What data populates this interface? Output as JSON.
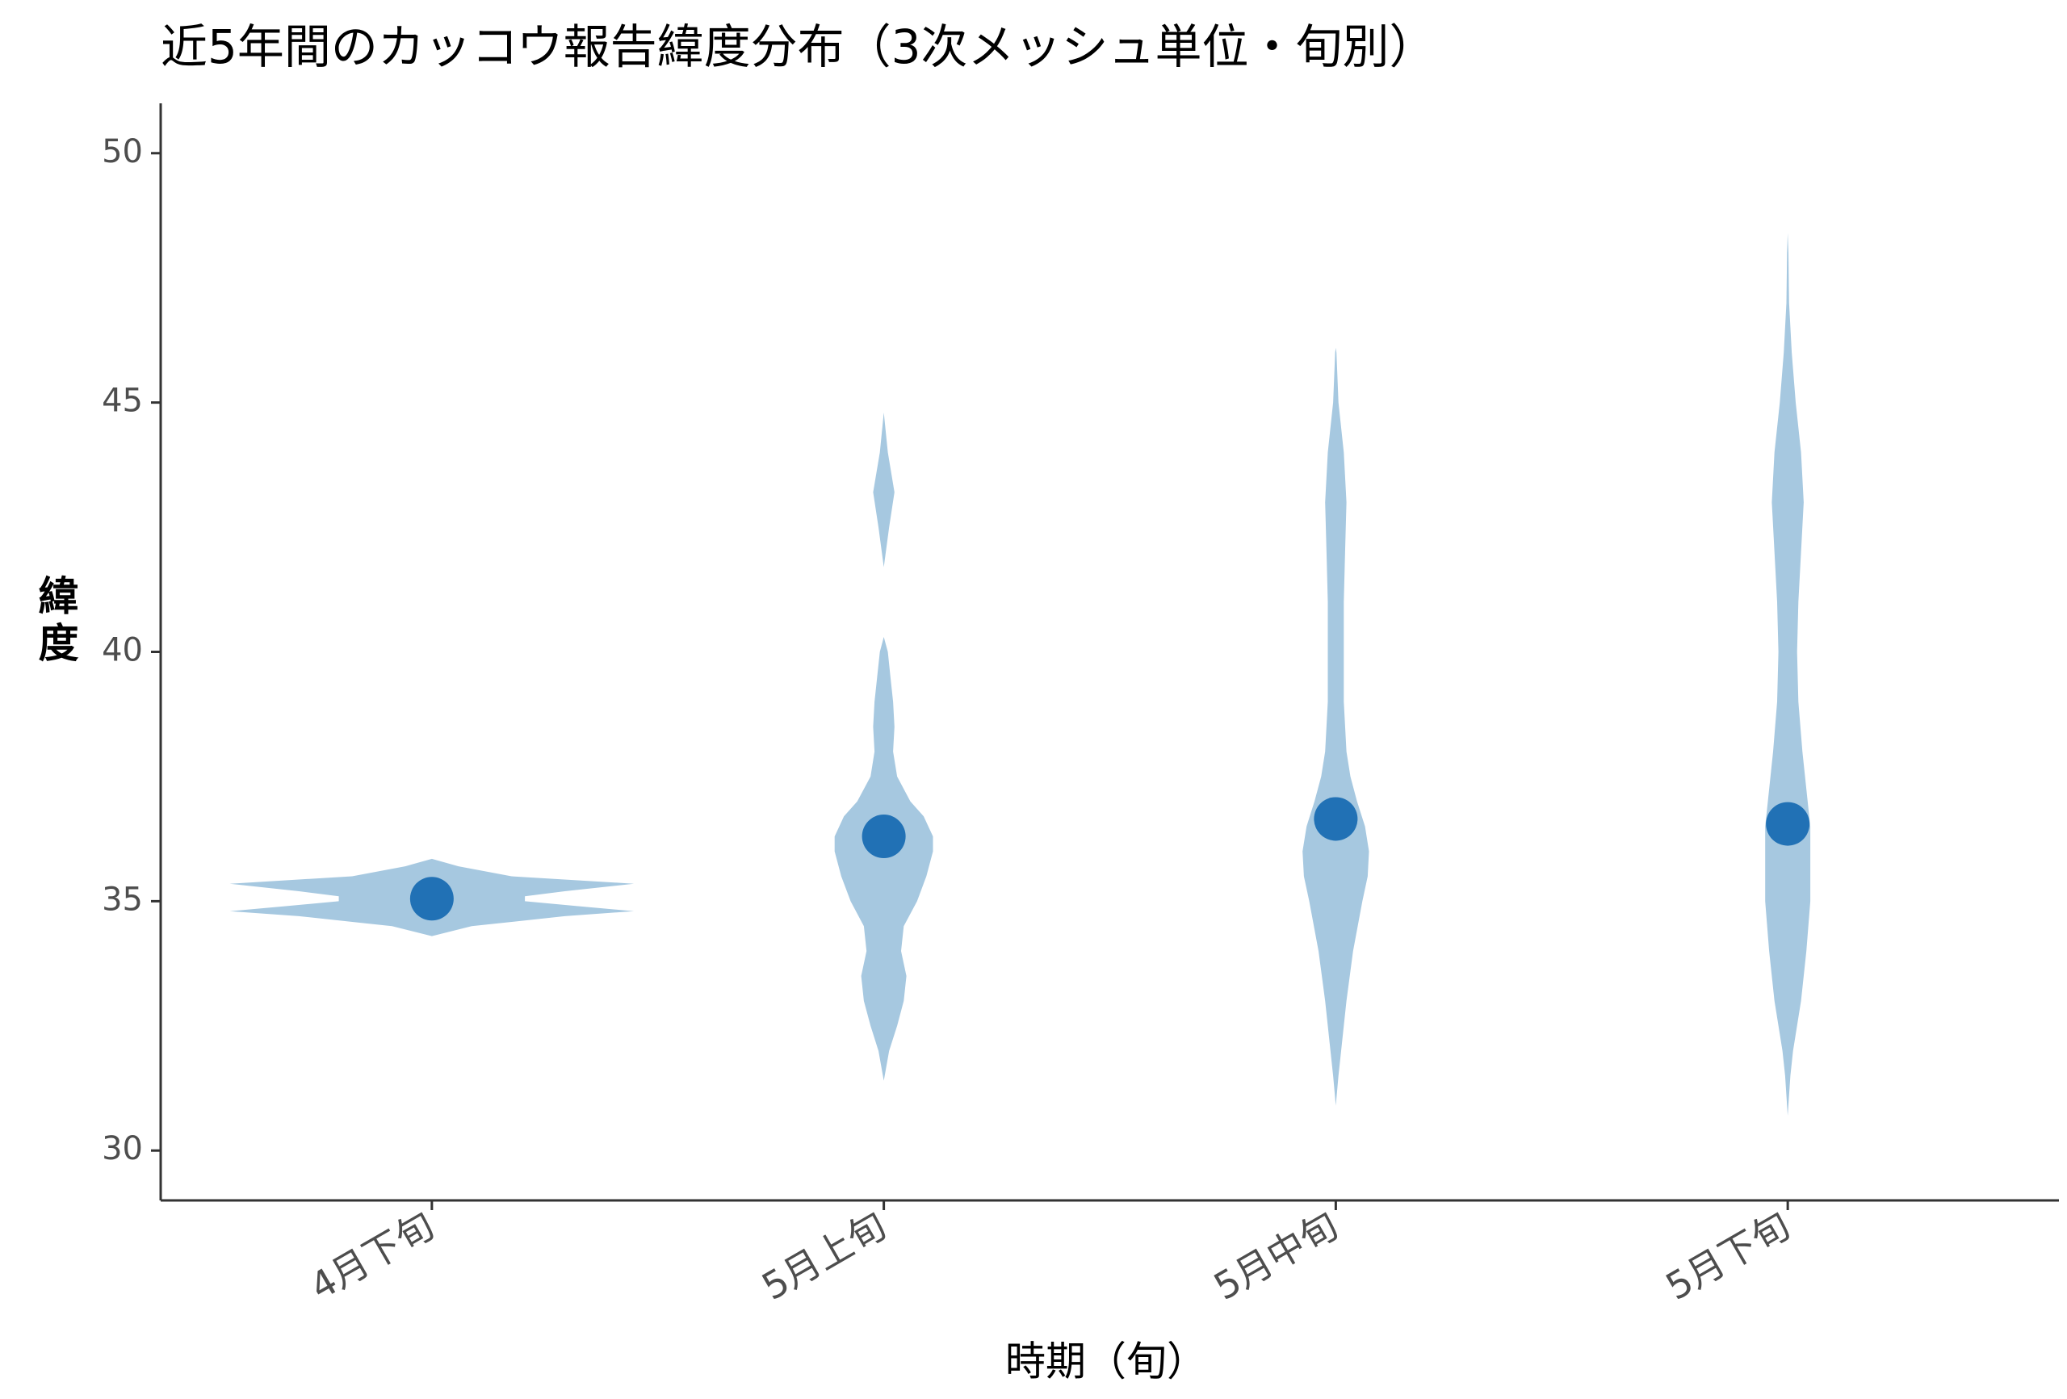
{
  "chart_data": {
    "type": "violin",
    "title": "近5年間のカッコウ報告緯度分布（3次メッシュ単位・旬別）",
    "x_label": "時期（旬）",
    "y_label": "緯度",
    "categories": [
      "4月下旬",
      "5月上旬",
      "5月中旬",
      "5月下旬"
    ],
    "values": [
      35.05,
      36.3,
      36.65,
      36.55
    ],
    "point_color": "#2171b5",
    "violin_color": "#a6c8e0",
    "violins": [
      {
        "y": [
          34.3,
          34.5,
          34.7,
          34.8,
          34.9,
          35.0,
          35.1,
          35.2,
          35.35,
          35.5,
          35.7,
          35.85
        ],
        "density": [
          0,
          30,
          100,
          152,
          110,
          70,
          70,
          100,
          152,
          60,
          20,
          0
        ]
      },
      {
        "y": [
          31.4,
          32,
          32.5,
          33,
          33.5,
          34,
          34.5,
          35,
          35.5,
          36,
          36.3,
          36.7,
          37,
          37.5,
          38,
          38.5,
          39,
          39.5,
          40,
          40.3,
          null,
          41.7,
          42.5,
          43.2,
          44,
          44.8
        ],
        "density": [
          0,
          4,
          10,
          15,
          17,
          13,
          15,
          25,
          32,
          37,
          37,
          30,
          20,
          10,
          7,
          8,
          7,
          5,
          3,
          0,
          null,
          0,
          4,
          8,
          3,
          0
        ]
      },
      {
        "y": [
          30.9,
          31.5,
          32,
          33,
          34,
          35,
          35.5,
          36,
          36.5,
          37,
          37.5,
          38,
          39,
          40,
          41,
          42,
          43,
          44,
          45,
          46,
          46.1
        ],
        "density": [
          0,
          2,
          4,
          8,
          13,
          20,
          24,
          25,
          22,
          16,
          11,
          8,
          6,
          6,
          6,
          7,
          8,
          6,
          2,
          0.5,
          0
        ]
      },
      {
        "y": [
          30.7,
          31.5,
          32,
          33,
          34,
          35,
          36,
          36.5,
          37,
          38,
          39,
          40,
          41,
          42,
          43,
          44,
          45,
          46,
          47,
          48,
          48.4
        ],
        "density": [
          0,
          2,
          4,
          10,
          14,
          17,
          17,
          17,
          15,
          11,
          8,
          7,
          8,
          10,
          12,
          10,
          6,
          3,
          1,
          0.5,
          0
        ]
      }
    ],
    "ylim": [
      29,
      51
    ],
    "yticks": [
      30,
      35,
      40,
      45,
      50
    ]
  }
}
